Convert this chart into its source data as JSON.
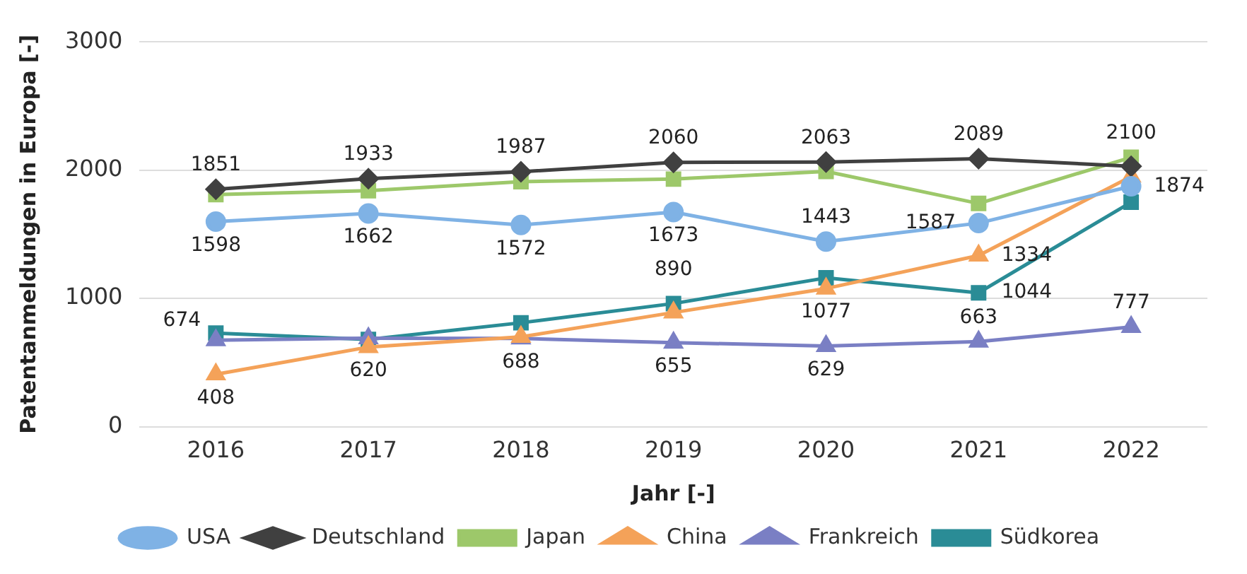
{
  "chart_data": {
    "type": "line",
    "xlabel": "Jahr [-]",
    "ylabel": "Patentanmeldungen in Europa [-]",
    "categories": [
      "2016",
      "2017",
      "2018",
      "2019",
      "2020",
      "2021",
      "2022"
    ],
    "ylim": [
      0,
      3000
    ],
    "yticks": [
      0,
      1000,
      2000,
      3000
    ],
    "grid": "y",
    "legend": "bottom",
    "line_style": "solid",
    "series": [
      {
        "name": "USA",
        "color": "#7fb2e5",
        "marker": "circle",
        "values": [
          1598,
          1662,
          1572,
          1673,
          1443,
          1587,
          1874
        ],
        "value_labels": [
          "1598",
          "1662",
          "1572",
          "1673",
          "1443",
          "1587",
          "1874"
        ]
      },
      {
        "name": "Deutschland",
        "color": "#404040",
        "marker": "diamond",
        "values": [
          1851,
          1933,
          1987,
          2060,
          2063,
          2089,
          2030
        ],
        "value_labels": [
          "1851",
          "1933",
          "1987",
          "2060",
          "2063",
          "2089",
          null
        ]
      },
      {
        "name": "Japan",
        "color": "#9dc86a",
        "marker": "square",
        "values": [
          1810,
          1840,
          1910,
          1930,
          1990,
          1740,
          2100
        ],
        "value_labels": [
          null,
          null,
          null,
          null,
          null,
          null,
          "2100"
        ]
      },
      {
        "name": "China",
        "color": "#f4a259",
        "marker": "triangle",
        "values": [
          408,
          620,
          700,
          890,
          1077,
          1334,
          1950
        ],
        "value_labels": [
          "408",
          "620",
          null,
          "890",
          "1077",
          "1334",
          null
        ]
      },
      {
        "name": "Frankreich",
        "color": "#7a7fc4",
        "marker": "triangle",
        "values": [
          674,
          690,
          688,
          655,
          629,
          663,
          777
        ],
        "value_labels": [
          "674",
          null,
          "688",
          "655",
          "629",
          "663",
          "777"
        ]
      },
      {
        "name": "Südkorea",
        "color": "#2a8c96",
        "marker": "square",
        "values": [
          730,
          680,
          810,
          960,
          1160,
          1044,
          1750
        ],
        "value_labels": [
          null,
          null,
          null,
          null,
          null,
          "1044",
          null
        ]
      }
    ]
  }
}
